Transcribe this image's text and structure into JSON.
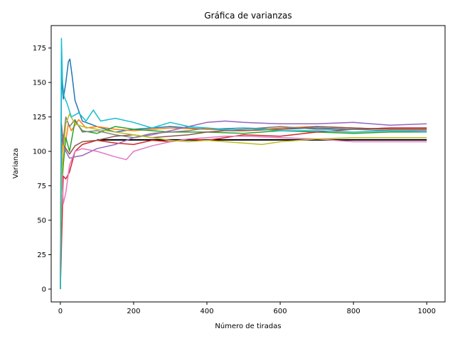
{
  "chart_data": {
    "type": "line",
    "title": "Gráfica de varianzas",
    "xlabel": "Número de tiradas",
    "ylabel": "Varianza",
    "xlim": [
      -25,
      1050
    ],
    "ylim": [
      -9.3,
      191.3
    ],
    "xticks": [
      0,
      200,
      400,
      600,
      800,
      1000
    ],
    "yticks": [
      0,
      25,
      50,
      75,
      100,
      125,
      150,
      175
    ],
    "grid": false,
    "legend": "none",
    "reference_line": {
      "y": 108.33,
      "x": [
        100,
        1000
      ],
      "color": "#000000"
    },
    "series": [
      {
        "color": "#1f77b4",
        "points": [
          [
            0,
            0
          ],
          [
            3,
            155
          ],
          [
            8,
            138
          ],
          [
            15,
            150
          ],
          [
            22,
            165
          ],
          [
            26,
            167
          ],
          [
            32,
            155
          ],
          [
            40,
            137
          ],
          [
            60,
            122
          ],
          [
            100,
            118
          ],
          [
            150,
            114
          ],
          [
            200,
            116
          ],
          [
            250,
            117
          ],
          [
            300,
            118
          ],
          [
            400,
            116
          ],
          [
            500,
            117
          ],
          [
            600,
            116
          ],
          [
            700,
            117
          ],
          [
            800,
            116
          ],
          [
            900,
            117
          ],
          [
            1000,
            117
          ]
        ]
      },
      {
        "color": "#ff7f0e",
        "points": [
          [
            0,
            0
          ],
          [
            3,
            95
          ],
          [
            8,
            112
          ],
          [
            15,
            108
          ],
          [
            22,
            120
          ],
          [
            30,
            115
          ],
          [
            50,
            123
          ],
          [
            70,
            117
          ],
          [
            100,
            118
          ],
          [
            150,
            116
          ],
          [
            200,
            115
          ],
          [
            300,
            117
          ],
          [
            400,
            116
          ],
          [
            500,
            115
          ],
          [
            600,
            117
          ],
          [
            700,
            118
          ],
          [
            800,
            117
          ],
          [
            900,
            116
          ],
          [
            1000,
            116
          ]
        ]
      },
      {
        "color": "#2ca02c",
        "points": [
          [
            0,
            0
          ],
          [
            3,
            70
          ],
          [
            8,
            90
          ],
          [
            15,
            110
          ],
          [
            25,
            100
          ],
          [
            40,
            122
          ],
          [
            60,
            115
          ],
          [
            100,
            113
          ],
          [
            150,
            118
          ],
          [
            200,
            116
          ],
          [
            300,
            114
          ],
          [
            400,
            114
          ],
          [
            500,
            113
          ],
          [
            600,
            115
          ],
          [
            700,
            114
          ],
          [
            800,
            113
          ],
          [
            900,
            114
          ],
          [
            1000,
            114
          ]
        ]
      },
      {
        "color": "#d62728",
        "points": [
          [
            0,
            0
          ],
          [
            3,
            30
          ],
          [
            8,
            82
          ],
          [
            15,
            80
          ],
          [
            25,
            85
          ],
          [
            40,
            100
          ],
          [
            60,
            105
          ],
          [
            100,
            108
          ],
          [
            150,
            106
          ],
          [
            200,
            105
          ],
          [
            250,
            108
          ],
          [
            300,
            107
          ],
          [
            350,
            109
          ],
          [
            400,
            108
          ],
          [
            450,
            110
          ],
          [
            500,
            112
          ],
          [
            600,
            111
          ],
          [
            700,
            114
          ],
          [
            800,
            116
          ],
          [
            900,
            117
          ],
          [
            1000,
            117
          ]
        ]
      },
      {
        "color": "#9467bd",
        "points": [
          [
            0,
            0
          ],
          [
            3,
            110
          ],
          [
            8,
            105
          ],
          [
            15,
            100
          ],
          [
            25,
            95
          ],
          [
            40,
            96
          ],
          [
            60,
            97
          ],
          [
            100,
            102
          ],
          [
            150,
            105
          ],
          [
            200,
            110
          ],
          [
            250,
            112
          ],
          [
            300,
            115
          ],
          [
            350,
            118
          ],
          [
            400,
            121
          ],
          [
            450,
            122
          ],
          [
            500,
            121
          ],
          [
            600,
            120
          ],
          [
            700,
            120
          ],
          [
            800,
            121
          ],
          [
            900,
            119
          ],
          [
            1000,
            120
          ]
        ]
      },
      {
        "color": "#8c564b",
        "points": [
          [
            0,
            0
          ],
          [
            3,
            120
          ],
          [
            8,
            105
          ],
          [
            15,
            102
          ],
          [
            25,
            98
          ],
          [
            40,
            104
          ],
          [
            60,
            107
          ],
          [
            100,
            108
          ],
          [
            150,
            111
          ],
          [
            200,
            112
          ],
          [
            250,
            110
          ],
          [
            300,
            111
          ],
          [
            350,
            112
          ],
          [
            400,
            114
          ],
          [
            450,
            115
          ],
          [
            500,
            115
          ],
          [
            600,
            116
          ],
          [
            700,
            118
          ],
          [
            800,
            117
          ],
          [
            900,
            116
          ],
          [
            1000,
            116
          ]
        ]
      },
      {
        "color": "#e377c2",
        "points": [
          [
            0,
            0
          ],
          [
            3,
            100
          ],
          [
            8,
            62
          ],
          [
            15,
            70
          ],
          [
            25,
            90
          ],
          [
            40,
            100
          ],
          [
            60,
            102
          ],
          [
            100,
            100
          ],
          [
            150,
            96
          ],
          [
            180,
            94
          ],
          [
            200,
            100
          ],
          [
            250,
            104
          ],
          [
            300,
            107
          ],
          [
            350,
            109
          ],
          [
            400,
            110
          ],
          [
            450,
            111
          ],
          [
            500,
            111
          ],
          [
            600,
            110
          ],
          [
            700,
            109
          ],
          [
            800,
            107
          ],
          [
            900,
            107
          ],
          [
            1000,
            107
          ]
        ]
      },
      {
        "color": "#7f7f7f",
        "points": [
          [
            0,
            0
          ],
          [
            3,
            115
          ],
          [
            8,
            108
          ],
          [
            15,
            125
          ],
          [
            25,
            118
          ],
          [
            40,
            123
          ],
          [
            60,
            114
          ],
          [
            100,
            115
          ],
          [
            150,
            112
          ],
          [
            200,
            110
          ],
          [
            250,
            113
          ],
          [
            300,
            114
          ],
          [
            350,
            115
          ],
          [
            400,
            117
          ],
          [
            450,
            115
          ],
          [
            500,
            116
          ],
          [
            600,
            118
          ],
          [
            700,
            116
          ],
          [
            800,
            116
          ],
          [
            900,
            115
          ],
          [
            1000,
            115
          ]
        ]
      },
      {
        "color": "#bcbd22",
        "points": [
          [
            0,
            0
          ],
          [
            3,
            80
          ],
          [
            8,
            100
          ],
          [
            15,
            120
          ],
          [
            25,
            127
          ],
          [
            40,
            120
          ],
          [
            60,
            118
          ],
          [
            100,
            116
          ],
          [
            150,
            114
          ],
          [
            200,
            112
          ],
          [
            250,
            110
          ],
          [
            300,
            108
          ],
          [
            350,
            107
          ],
          [
            400,
            108
          ],
          [
            450,
            107
          ],
          [
            500,
            106
          ],
          [
            550,
            105
          ],
          [
            600,
            107
          ],
          [
            700,
            109
          ],
          [
            800,
            110
          ],
          [
            900,
            110
          ],
          [
            1000,
            110
          ]
        ]
      },
      {
        "color": "#17becf",
        "points": [
          [
            0,
            0
          ],
          [
            3,
            182
          ],
          [
            6,
            150
          ],
          [
            10,
            140
          ],
          [
            18,
            135
          ],
          [
            30,
            125
          ],
          [
            50,
            128
          ],
          [
            70,
            122
          ],
          [
            90,
            130
          ],
          [
            110,
            122
          ],
          [
            150,
            124
          ],
          [
            200,
            121
          ],
          [
            250,
            117
          ],
          [
            300,
            121
          ],
          [
            350,
            118
          ],
          [
            400,
            117
          ],
          [
            450,
            116
          ],
          [
            500,
            117
          ],
          [
            600,
            115
          ],
          [
            700,
            115
          ],
          [
            800,
            114
          ],
          [
            900,
            115
          ],
          [
            1000,
            114
          ]
        ]
      }
    ]
  }
}
